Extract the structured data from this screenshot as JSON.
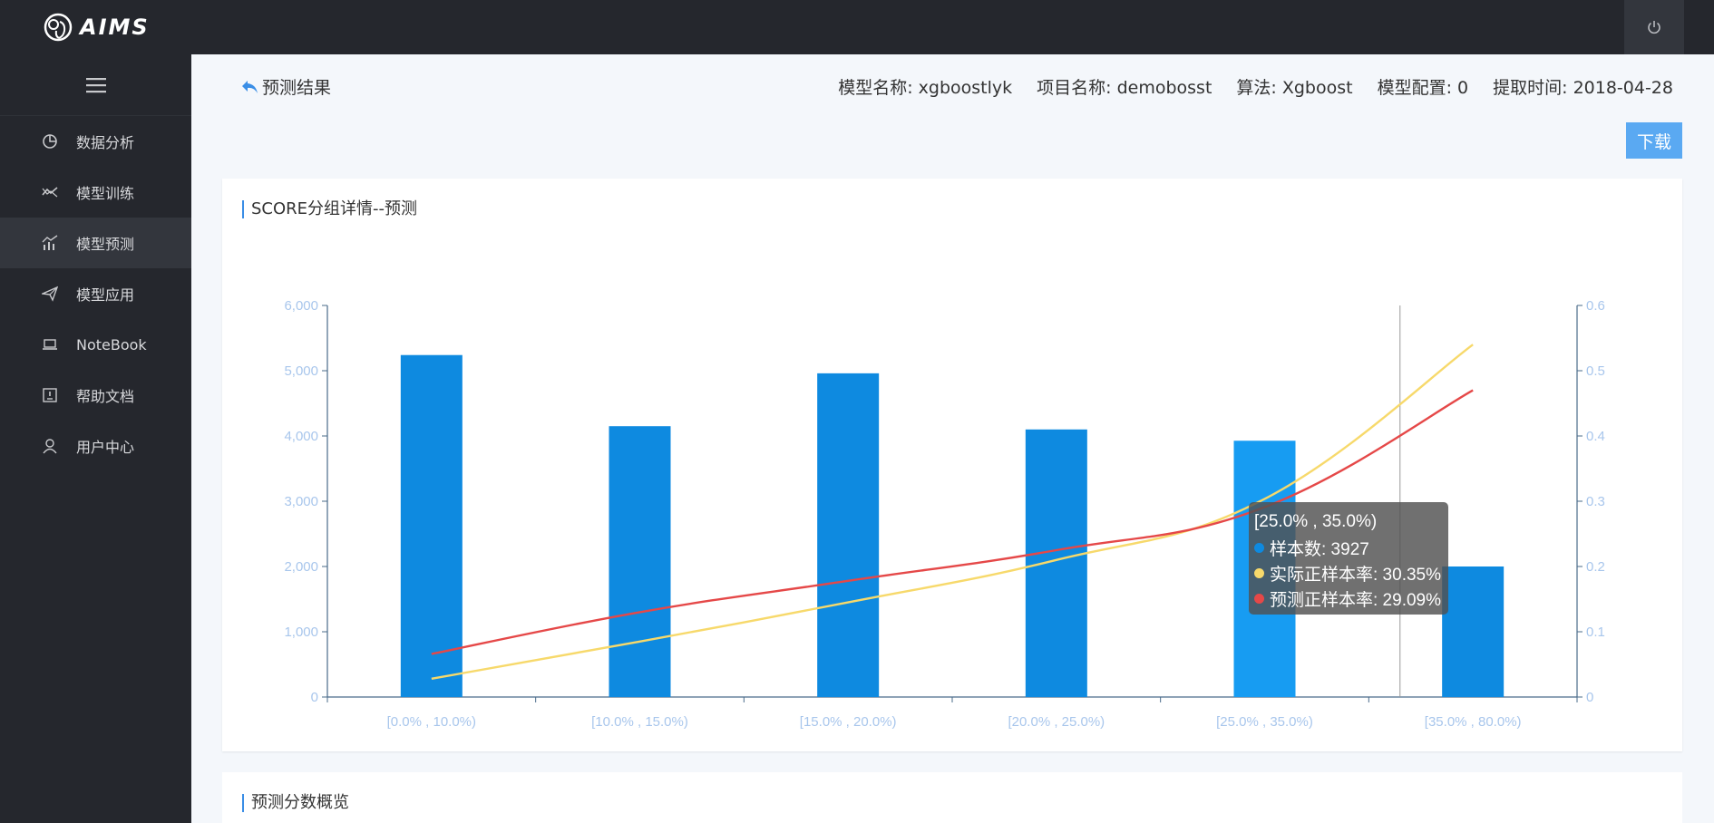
{
  "app": {
    "name": "AIMS"
  },
  "sidebar": {
    "items": [
      {
        "label": "数据分析",
        "icon": "pie-chart-icon"
      },
      {
        "label": "模型训练",
        "icon": "trend-icon"
      },
      {
        "label": "模型预测",
        "icon": "bar-line-chart-icon",
        "active": true
      },
      {
        "label": "模型应用",
        "icon": "paper-plane-icon"
      },
      {
        "label": "NoteBook",
        "icon": "laptop-icon"
      },
      {
        "label": "帮助文档",
        "icon": "book-icon"
      },
      {
        "label": "用户中心",
        "icon": "user-icon"
      }
    ]
  },
  "header": {
    "back_label": "预测结果",
    "meta": [
      "模型名称: xgboostlyk",
      "项目名称: demobosst",
      "算法: Xgboost",
      "模型配置: 0",
      "提取时间: 2018-04-28"
    ]
  },
  "toolbar": {
    "download_label": "下载"
  },
  "card1": {
    "title": "SCORE分组详情--预测"
  },
  "card2": {
    "title": "预测分数概览"
  },
  "colors": {
    "bar": "#0e8ae0",
    "bar_highlight": "#179cf2",
    "actual": "#f7d96b",
    "predicted": "#e54848",
    "axis_text": "#a8c6ec"
  },
  "chart_data": {
    "type": "bar",
    "categories": [
      "[0.0% , 10.0%)",
      "[10.0% , 15.0%)",
      "[15.0% , 20.0%)",
      "[20.0% , 25.0%)",
      "[25.0% , 35.0%)",
      "[35.0% , 80.0%)"
    ],
    "series": [
      {
        "name": "样本数",
        "type": "bar",
        "axis": "left",
        "values": [
          5240,
          4150,
          4960,
          4100,
          3927,
          2000
        ]
      },
      {
        "name": "实际正样本率",
        "type": "line",
        "axis": "right",
        "values": [
          0.028,
          0.085,
          0.145,
          0.21,
          0.3035,
          0.54
        ]
      },
      {
        "name": "预测正样本率",
        "type": "line",
        "axis": "right",
        "values": [
          0.066,
          0.13,
          0.178,
          0.225,
          0.2909,
          0.47
        ]
      }
    ],
    "ylim_left": [
      0,
      6000
    ],
    "yticks_left": [
      "0",
      "1,000",
      "2,000",
      "3,000",
      "4,000",
      "5,000",
      "6,000"
    ],
    "ylim_right": [
      0,
      0.6
    ],
    "yticks_right": [
      "0",
      "0.1",
      "0.2",
      "0.3",
      "0.4",
      "0.5",
      "0.6"
    ],
    "tooltip": {
      "title": "[25.0% , 35.0%)",
      "rows": [
        "样本数: 3927",
        "实际正样本率: 30.35%",
        "预测正样本率: 29.09%"
      ]
    }
  }
}
